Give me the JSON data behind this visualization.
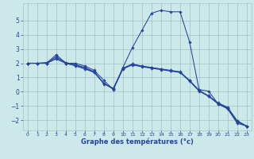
{
  "bg_color": "#cce8e8",
  "line_color": "#2343a0",
  "grid_color": "#a0c8c8",
  "xlabel": "Graphe des températures (°c)",
  "xlabel_color": "#2343a0",
  "xlim": [
    -0.5,
    23.5
  ],
  "ylim": [
    -2.7,
    6.2
  ],
  "xticks": [
    0,
    1,
    2,
    3,
    4,
    5,
    6,
    7,
    8,
    9,
    10,
    11,
    12,
    13,
    14,
    15,
    16,
    17,
    18,
    19,
    20,
    21,
    22,
    23
  ],
  "yticks": [
    -2,
    -1,
    0,
    1,
    2,
    3,
    4,
    5
  ],
  "lines": [
    {
      "x": [
        0,
        1,
        2,
        3,
        4,
        5,
        6,
        7,
        8,
        9,
        10,
        11,
        12,
        13,
        14,
        15,
        16,
        17,
        18,
        19,
        20,
        21,
        22,
        23
      ],
      "y": [
        2.0,
        2.0,
        2.0,
        2.6,
        2.0,
        2.0,
        1.8,
        1.5,
        0.8,
        0.15,
        1.7,
        3.1,
        4.3,
        5.5,
        5.7,
        5.6,
        5.6,
        3.5,
        0.15,
        0.05,
        -0.85,
        -1.2,
        -2.2,
        -2.4
      ]
    },
    {
      "x": [
        0,
        1,
        2,
        3,
        4,
        5,
        6,
        7,
        8,
        9,
        10,
        11,
        12,
        13,
        14,
        15,
        16,
        17,
        18,
        19,
        20,
        21,
        22,
        23
      ],
      "y": [
        2.0,
        2.0,
        2.05,
        2.45,
        2.05,
        1.9,
        1.7,
        1.4,
        0.55,
        0.25,
        1.65,
        1.95,
        1.8,
        1.7,
        1.6,
        1.5,
        1.4,
        0.8,
        0.1,
        -0.3,
        -0.85,
        -1.15,
        -2.1,
        -2.4
      ]
    },
    {
      "x": [
        0,
        1,
        2,
        3,
        4,
        5,
        6,
        7,
        8,
        9,
        10,
        11,
        12,
        13,
        14,
        15,
        16,
        17,
        18,
        19,
        20,
        21,
        22,
        23
      ],
      "y": [
        2.0,
        2.0,
        2.0,
        2.35,
        2.0,
        1.85,
        1.65,
        1.38,
        0.6,
        0.2,
        1.62,
        1.9,
        1.78,
        1.68,
        1.58,
        1.48,
        1.38,
        0.78,
        0.08,
        -0.28,
        -0.78,
        -1.08,
        -2.05,
        -2.4
      ]
    },
    {
      "x": [
        0,
        1,
        2,
        3,
        4,
        5,
        6,
        7,
        8,
        9,
        10,
        11,
        12,
        13,
        14,
        15,
        16,
        17,
        18,
        19,
        20,
        21,
        22,
        23
      ],
      "y": [
        2.0,
        2.0,
        2.0,
        2.3,
        2.0,
        1.82,
        1.6,
        1.35,
        0.58,
        0.18,
        1.6,
        1.88,
        1.75,
        1.65,
        1.55,
        1.45,
        1.35,
        0.75,
        0.05,
        -0.32,
        -0.82,
        -1.12,
        -2.02,
        -2.4
      ]
    }
  ]
}
